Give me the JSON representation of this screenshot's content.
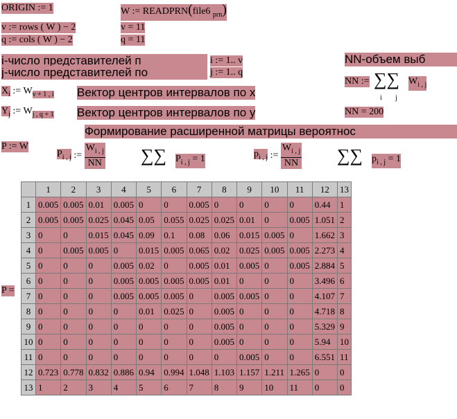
{
  "defs": {
    "origin": "ORIGIN := 1",
    "w_read_prefix": "W := READPRN",
    "w_read_arg": "file6",
    "w_read_ext": "prn",
    "v_def": "v := rows ( W ) − 2",
    "q_def": "q := cols ( W ) − 2",
    "v_val": "v = 11",
    "q_val": "q = 11"
  },
  "text": {
    "i_text": "i-число представителей п",
    "i_range": "i := 1.. v",
    "j_text": "j-число представителей по",
    "j_range": "j := 1.. q",
    "nn_text": "NN-объем выб",
    "vec_x": "Вектор центров интервалов по x",
    "vec_y": "Вектор центров интервалов по y",
    "nn_val": "NN = 200",
    "formation": "Формирование расширенной матрицы вероятнос"
  },
  "formulas": {
    "x_lhs": "X",
    "x_lhs_sub": "i",
    "x_rhs": ":= W",
    "x_rhs_sub": "v + 1 , i",
    "y_lhs": "Y",
    "y_lhs_sub": "j",
    "y_rhs": ":= W",
    "y_rhs_sub": "j , q + 1",
    "nn_lhs": "NN :=",
    "nn_sum": "∑∑",
    "nn_sub_i": "i",
    "nn_sub_j": "j",
    "nn_w": "W",
    "nn_w_sub": "i , j",
    "p_assign": "P := W",
    "p1_lhs": "P",
    "p1_lhs_sub": "i , j",
    "p1_assign": ":=",
    "p1_num": "W",
    "p1_num_sub": "i , j",
    "p1_den": "NN",
    "sum1": "∑∑",
    "sum1_p": "P",
    "sum1_p_sub": "i , j",
    "sum1_eq": "= 1",
    "p2_lhs": "p",
    "p2_lhs_sub": "i , j",
    "p2_assign": ":=",
    "p2_num": "W",
    "p2_num_sub": "i , j",
    "p2_den": "NN",
    "sum2": "∑∑",
    "sum2_p": "p",
    "sum2_p_sub": "i , j",
    "sum2_eq": "= 1",
    "p_eq": "P ="
  },
  "matrix": {
    "col_headers": [
      "1",
      "2",
      "3",
      "4",
      "5",
      "6",
      "7",
      "8",
      "9",
      "10",
      "11",
      "12",
      "13"
    ],
    "row_headers": [
      "1",
      "2",
      "3",
      "4",
      "5",
      "6",
      "7",
      "8",
      "9",
      "10",
      "11",
      "12",
      "13"
    ],
    "rows": [
      [
        "0.005",
        "0.005",
        "0.01",
        "0.005",
        "0",
        "0",
        "0.005",
        "0",
        "0",
        "0",
        "0",
        "0.44",
        "1"
      ],
      [
        "0.005",
        "0.005",
        "0.025",
        "0.045",
        "0.05",
        "0.055",
        "0.025",
        "0.025",
        "0.01",
        "0",
        "0.005",
        "1.051",
        "2"
      ],
      [
        "0",
        "0",
        "0.015",
        "0.045",
        "0.09",
        "0.1",
        "0.08",
        "0.06",
        "0.015",
        "0.005",
        "0",
        "1.662",
        "3"
      ],
      [
        "0",
        "0.005",
        "0.005",
        "0",
        "0.015",
        "0.005",
        "0.065",
        "0.02",
        "0.025",
        "0.005",
        "0.005",
        "2.273",
        "4"
      ],
      [
        "0",
        "0",
        "0",
        "0.005",
        "0.02",
        "0",
        "0.005",
        "0.01",
        "0.005",
        "0",
        "0.005",
        "2.884",
        "5"
      ],
      [
        "0",
        "0",
        "0",
        "0.005",
        "0.005",
        "0.005",
        "0.005",
        "0.01",
        "0",
        "0",
        "0",
        "3.496",
        "6"
      ],
      [
        "0",
        "0",
        "0",
        "0.005",
        "0.005",
        "0.005",
        "0",
        "0.005",
        "0.005",
        "0",
        "0",
        "4.107",
        "7"
      ],
      [
        "0",
        "0",
        "0",
        "0",
        "0.01",
        "0.025",
        "0",
        "0.005",
        "0",
        "0",
        "0",
        "4.718",
        "8"
      ],
      [
        "0",
        "0",
        "0",
        "0",
        "0",
        "0",
        "0",
        "0.005",
        "0",
        "0",
        "0",
        "5.329",
        "9"
      ],
      [
        "0",
        "0",
        "0",
        "0",
        "0",
        "0",
        "0",
        "0.005",
        "0",
        "0",
        "0",
        "5.94",
        "10"
      ],
      [
        "0",
        "0",
        "0",
        "0",
        "0",
        "0",
        "0",
        "0",
        "0.005",
        "0",
        "0",
        "6.551",
        "11"
      ],
      [
        "0.723",
        "0.778",
        "0.832",
        "0.886",
        "0.94",
        "0.994",
        "1.048",
        "1.103",
        "1.157",
        "1.211",
        "1.265",
        "0",
        "0"
      ],
      [
        "1",
        "2",
        "3",
        "4",
        "5",
        "6",
        "7",
        "8",
        "9",
        "10",
        "11",
        "0",
        "0"
      ]
    ]
  }
}
